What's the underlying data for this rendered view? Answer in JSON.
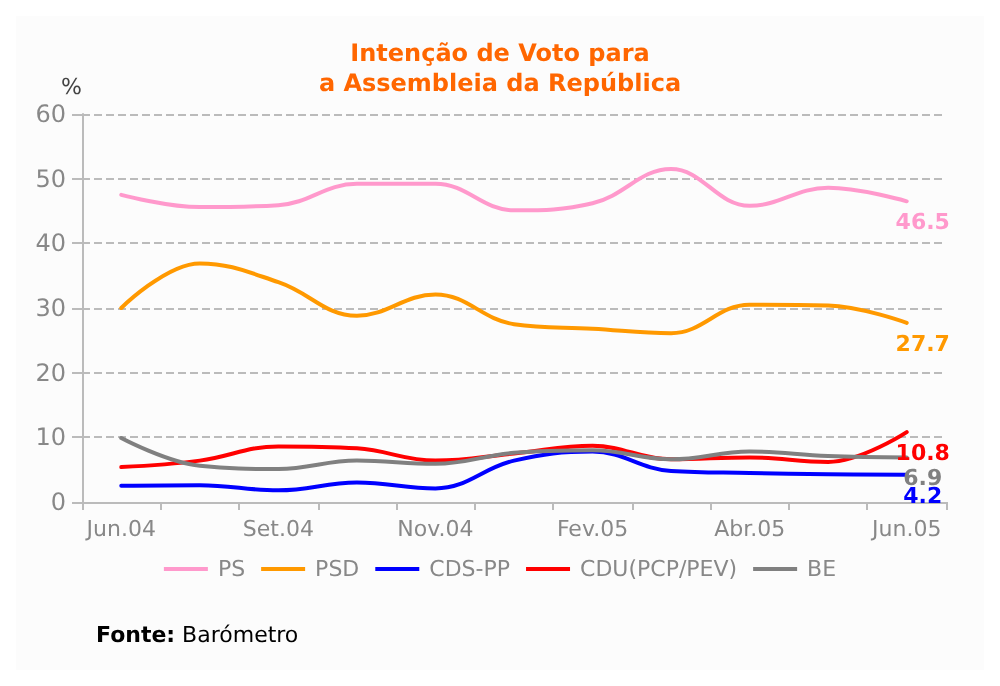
{
  "chart_data": {
    "type": "line",
    "title": "Intenção de Voto para\na Assembleia da República",
    "ylabel": "%",
    "categories": [
      "Jun.04",
      null,
      "Set.04",
      null,
      "Nov.04",
      null,
      "Fev.05",
      null,
      "Abr.05",
      null,
      "Jun.05"
    ],
    "series": [
      {
        "name": "PS",
        "color": "#ff99cc",
        "values": [
          47.5,
          45.6,
          45.9,
          49.2,
          49.2,
          45.1,
          46.2,
          51.5,
          45.8,
          48.6,
          46.5
        ],
        "value_labels": [
          null,
          null,
          null,
          null,
          null,
          null,
          null,
          null,
          null,
          null,
          "46.5"
        ]
      },
      {
        "name": "PSD",
        "color": "#ff9900",
        "values": [
          30,
          36.9,
          34,
          28.8,
          32.1,
          27.5,
          26.8,
          26.1,
          30.5,
          30.4,
          27.7
        ],
        "value_labels": [
          null,
          null,
          null,
          null,
          null,
          null,
          null,
          null,
          null,
          null,
          "27.7"
        ]
      },
      {
        "name": "CDS-PP",
        "color": "#0000ff",
        "values": [
          2.5,
          2.6,
          1.8,
          3.0,
          2.1,
          6.4,
          7.8,
          4.8,
          4.5,
          4.3,
          4.2
        ],
        "value_labels": [
          null,
          null,
          null,
          null,
          null,
          null,
          null,
          null,
          null,
          null,
          "4.2"
        ]
      },
      {
        "name": "CDU(PCP/PEV)",
        "color": "#ff0000",
        "values": [
          5.4,
          6.4,
          8.6,
          8.3,
          6.4,
          7.5,
          8.7,
          6.6,
          6.9,
          6.2,
          10.8
        ],
        "value_labels": [
          null,
          null,
          null,
          null,
          null,
          null,
          null,
          null,
          null,
          null,
          "10.8"
        ]
      },
      {
        "name": "BE",
        "color": "#808080",
        "values": [
          9.9,
          5.6,
          5.1,
          6.4,
          5.9,
          7.6,
          8.0,
          6.6,
          7.8,
          7.1,
          6.9
        ],
        "value_labels": [
          null,
          null,
          null,
          null,
          null,
          null,
          null,
          null,
          null,
          null,
          "6.9"
        ]
      }
    ],
    "ylim": [
      0,
      60
    ],
    "yticks": [
      0,
      10,
      20,
      30,
      40,
      50,
      60
    ],
    "grid": "y",
    "legend": "bottom",
    "marker": "none",
    "line_style": "solid",
    "annotations": [
      "Fonte: Barómetro"
    ]
  }
}
